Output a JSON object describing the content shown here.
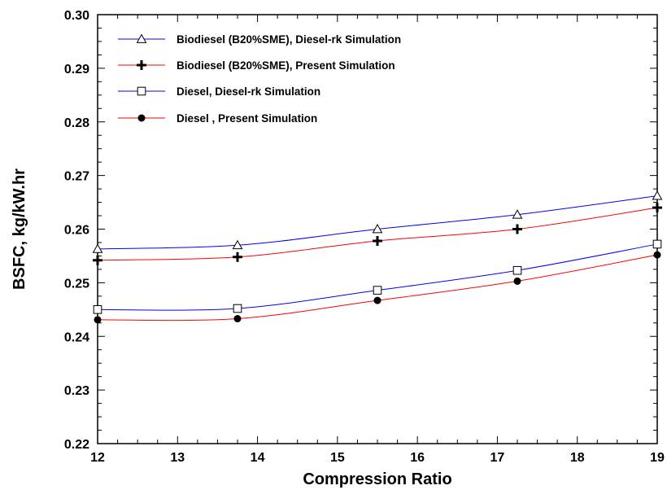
{
  "chart_data": {
    "type": "line",
    "xlabel": "Compression Ratio",
    "ylabel": "BSFC, kg/kW.hr",
    "xlim": [
      12,
      19
    ],
    "ylim": [
      0.22,
      0.3
    ],
    "xticks": [
      "12",
      "13",
      "14",
      "15",
      "16",
      "17",
      "18",
      "19"
    ],
    "yticks": [
      "0.22",
      "0.23",
      "0.24",
      "0.25",
      "0.26",
      "0.27",
      "0.28",
      "0.29",
      "0.30"
    ],
    "grid": false,
    "legend_position": "top-left",
    "x": [
      12,
      13.75,
      15.5,
      17.25,
      19
    ],
    "series": [
      {
        "name": "Biodiesel (B20%SME), Diesel-rk Simulation",
        "marker": "triangle-open",
        "color": "#0000ff",
        "values": [
          0.2563,
          0.257,
          0.26,
          0.2627,
          0.2662
        ]
      },
      {
        "name": "Biodiesel (B20%SME), Present Simulation",
        "marker": "plus",
        "color": "#ff0000",
        "values": [
          0.2542,
          0.2548,
          0.2578,
          0.26,
          0.264
        ]
      },
      {
        "name": "Diesel, Diesel-rk Simulation",
        "marker": "square-open",
        "color": "#0000ff",
        "values": [
          0.245,
          0.2452,
          0.2486,
          0.2523,
          0.2572
        ]
      },
      {
        "name": "Diesel , Present Simulation",
        "marker": "circle-filled",
        "color": "#ff0000",
        "values": [
          0.2431,
          0.2433,
          0.2467,
          0.2503,
          0.2552
        ]
      }
    ]
  }
}
